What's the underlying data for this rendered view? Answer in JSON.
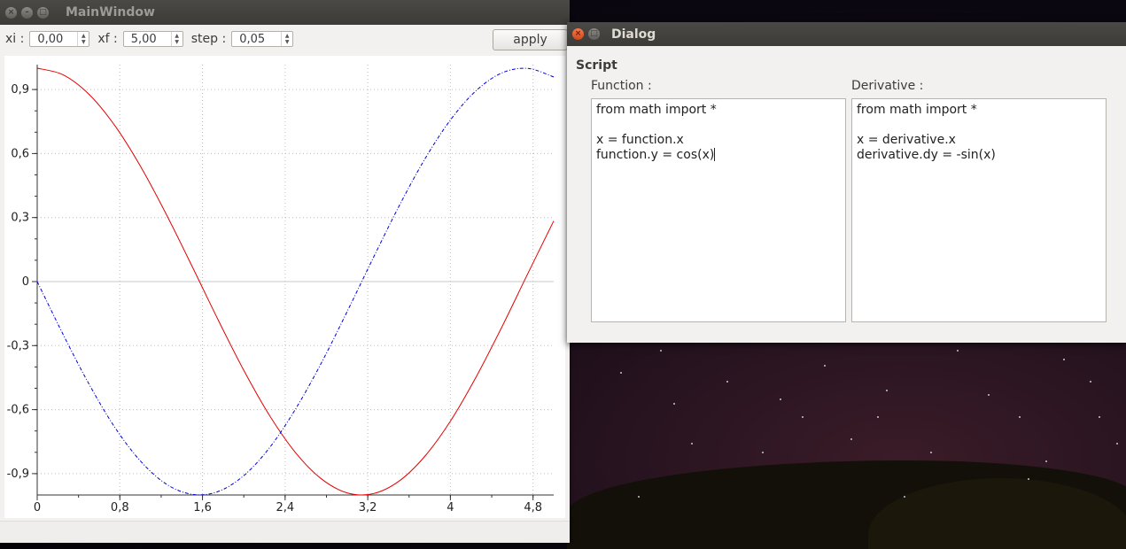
{
  "main_window": {
    "title": "MainWindow",
    "toolbar": {
      "xi_label": "xi :",
      "xi_value": "0,00",
      "xf_label": "xf :",
      "xf_value": "5,00",
      "step_label": "step :",
      "step_value": "0,05",
      "apply_label": "apply"
    }
  },
  "dialog": {
    "title": "Dialog",
    "group_title": "Script",
    "function_label": "Function :",
    "derivative_label": "Derivative :",
    "function_lines": [
      "from math import *",
      "",
      "x = function.x",
      "function.y = cos(x)"
    ],
    "derivative_lines": [
      "from math import *",
      "",
      "x = derivative.x",
      "derivative.dy = -sin(x)"
    ]
  },
  "chart_data": {
    "type": "line",
    "xlim": [
      0,
      5
    ],
    "ylim": [
      -1,
      1
    ],
    "x_ticks": [
      "0",
      "0,8",
      "1,6",
      "2,4",
      "3,2",
      "4",
      "4,8"
    ],
    "x_tick_values": [
      0,
      0.8,
      1.6,
      2.4,
      3.2,
      4.0,
      4.8
    ],
    "y_ticks": [
      "0,9",
      "0,6",
      "0,3",
      "0",
      "-0,3",
      "-0,6",
      "-0,9"
    ],
    "y_tick_values": [
      0.9,
      0.6,
      0.3,
      0,
      -0.3,
      -0.6,
      -0.9
    ],
    "grid": true,
    "series": [
      {
        "color": "#e60000",
        "style": "solid",
        "x": [
          0,
          0.25,
          0.5,
          0.75,
          1.0,
          1.25,
          1.5,
          1.75,
          2.0,
          2.25,
          2.5,
          2.75,
          3.0,
          3.25,
          3.5,
          3.75,
          4.0,
          4.25,
          4.5,
          4.75,
          5.0
        ],
        "values": [
          1.0,
          0.969,
          0.878,
          0.732,
          0.54,
          0.315,
          0.071,
          -0.178,
          -0.416,
          -0.628,
          -0.801,
          -0.924,
          -0.99,
          -0.994,
          -0.936,
          -0.82,
          -0.654,
          -0.446,
          -0.211,
          0.038,
          0.284
        ]
      },
      {
        "color": "#0000d0",
        "style": "dashdot",
        "x": [
          0,
          0.25,
          0.5,
          0.75,
          1.0,
          1.25,
          1.5,
          1.75,
          2.0,
          2.25,
          2.5,
          2.75,
          3.0,
          3.25,
          3.5,
          3.75,
          4.0,
          4.25,
          4.5,
          4.75,
          5.0
        ],
        "values": [
          0.0,
          -0.247,
          -0.479,
          -0.682,
          -0.841,
          -0.949,
          -0.997,
          -0.984,
          -0.909,
          -0.778,
          -0.598,
          -0.382,
          -0.141,
          0.108,
          0.351,
          0.572,
          0.757,
          0.895,
          0.978,
          0.999,
          0.959
        ]
      }
    ]
  }
}
